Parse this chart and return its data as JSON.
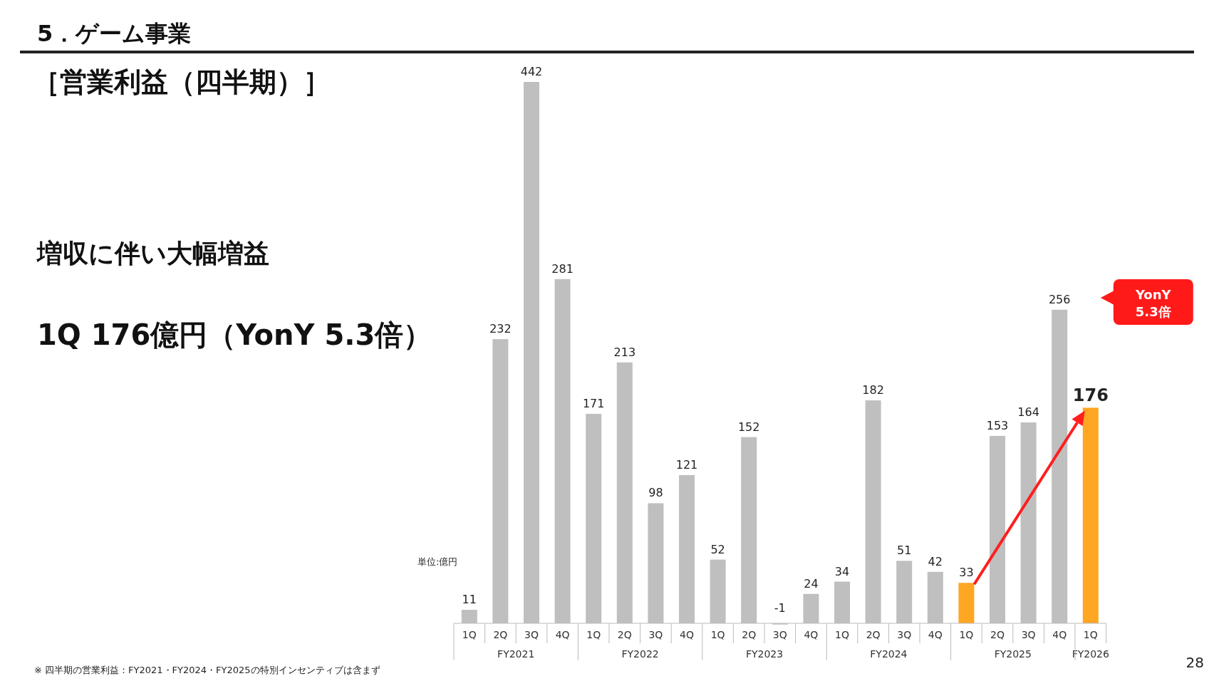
{
  "chart_data": {
    "type": "bar",
    "title": "5．ゲーム事業",
    "subtitle": "［営業利益（四半期）］",
    "categories": [
      "1Q",
      "2Q",
      "3Q",
      "4Q",
      "1Q",
      "2Q",
      "3Q",
      "4Q",
      "1Q",
      "2Q",
      "3Q",
      "4Q",
      "1Q",
      "2Q",
      "3Q",
      "4Q",
      "1Q",
      "2Q",
      "3Q",
      "4Q",
      "1Q"
    ],
    "values": [
      11,
      232,
      442,
      281,
      171,
      213,
      98,
      121,
      52,
      152,
      -1,
      24,
      34,
      182,
      51,
      42,
      33,
      153,
      164,
      256,
      176
    ],
    "colors": [
      "#bfbfbf",
      "#bfbfbf",
      "#bfbfbf",
      "#bfbfbf",
      "#bfbfbf",
      "#bfbfbf",
      "#bfbfbf",
      "#bfbfbf",
      "#bfbfbf",
      "#bfbfbf",
      "#bfbfbf",
      "#bfbfbf",
      "#bfbfbf",
      "#bfbfbf",
      "#bfbfbf",
      "#bfbfbf",
      "#ffa622",
      "#bfbfbf",
      "#bfbfbf",
      "#bfbfbf",
      "#ffa622"
    ],
    "data_labels": true,
    "annotations": [
      "増収に伴い大幅増益",
      "1Q 176億円（YonY 5.3倍）",
      "単位:億円",
      "YonY 5.3倍",
      "※ 四半期の営業利益：FY2021・FY2024・FY2025の特別インセンティブは含まず",
      "28",
      "FY2021",
      "FY2022",
      "FY2023",
      "FY2024",
      "FY2025",
      "FY2026"
    ]
  }
}
